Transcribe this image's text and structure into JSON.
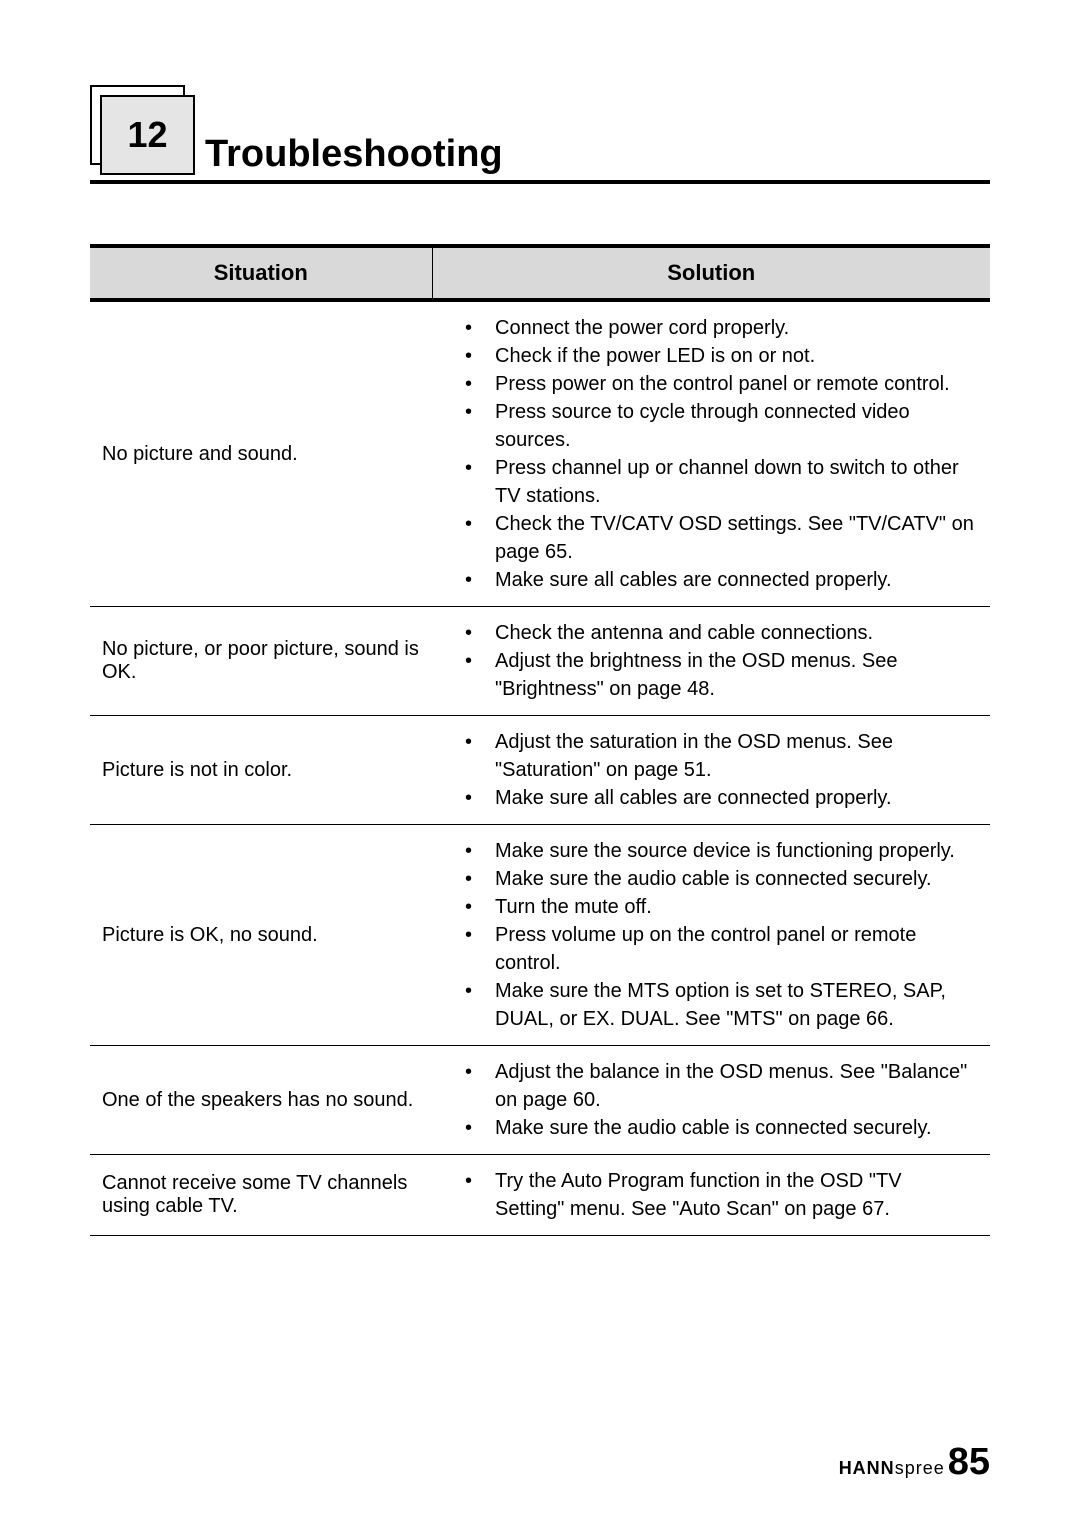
{
  "chapter": {
    "number": "12",
    "title": "Troubleshooting"
  },
  "table": {
    "headers": {
      "situation": "Situation",
      "solution": "Solution"
    },
    "rows": [
      {
        "situation": "No picture and sound.",
        "solutions": [
          "Connect the power cord properly.",
          "Check if the power LED is on or not.",
          "Press power on the control panel or remote control.",
          "Press source to cycle through connected video sources.",
          "Press channel up or channel down to switch to other TV stations.",
          "Check the TV/CATV OSD settings. See \"TV/CATV\" on page 65.",
          "Make sure all cables are connected properly."
        ]
      },
      {
        "situation": "No picture, or poor picture, sound is OK.",
        "solutions": [
          "Check the antenna and cable connections.",
          "Adjust the brightness in the OSD menus. See \"Brightness\" on page 48."
        ]
      },
      {
        "situation": "Picture is not in color.",
        "solutions": [
          "Adjust the saturation in the OSD menus. See \"Saturation\" on page 51.",
          "Make sure all cables are connected properly."
        ]
      },
      {
        "situation": "Picture is OK, no sound.",
        "solutions": [
          "Make sure the source device is functioning properly.",
          "Make sure the audio cable is connected securely.",
          "Turn the mute off.",
          "Press volume up on the control panel or remote control.",
          "Make sure the MTS option is set to STEREO, SAP, DUAL, or EX. DUAL. See \"MTS\" on page 66."
        ]
      },
      {
        "situation": "One of the speakers has no sound.",
        "solutions": [
          "Adjust the balance in the OSD menus. See \"Balance\" on page 60.",
          "Make sure the audio cable is connected securely."
        ]
      },
      {
        "situation": "Cannot receive some TV channels using cable TV.",
        "solutions": [
          "Try the Auto Program function in the OSD \"TV Setting\" menu. See \"Auto Scan\" on page 67."
        ]
      }
    ]
  },
  "footer": {
    "brand_hann": "HANN",
    "brand_spree": "spree",
    "page_number": "85"
  },
  "styling": {
    "background_color": "#ffffff",
    "header_bg_color": "#d9d9d9",
    "chapter_box_bg": "#e5e5e5",
    "border_color": "#000000",
    "text_color": "#000000",
    "body_font_size": 20,
    "header_font_size": 22,
    "chapter_title_size": 38,
    "chapter_number_size": 36,
    "page_number_size": 38
  }
}
